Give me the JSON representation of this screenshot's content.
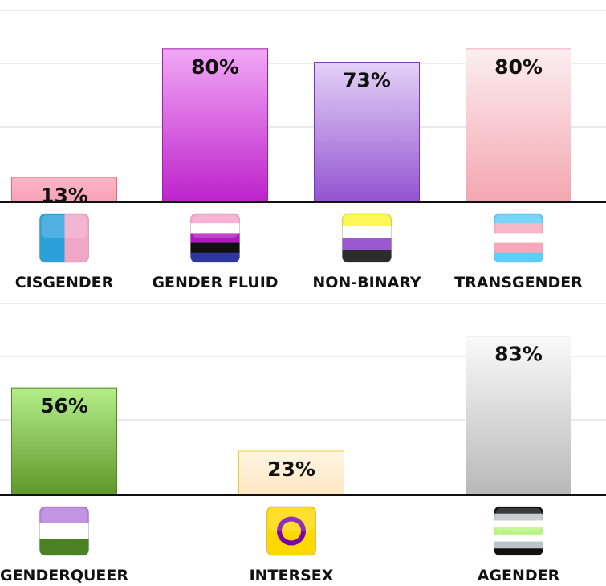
{
  "chart_data": [
    {
      "type": "bar",
      "categories": [
        "CISGENDER",
        "GENDER FLUID",
        "NON-BINARY",
        "TRANSGENDER"
      ],
      "values": [
        13,
        80,
        73,
        80
      ],
      "value_labels": [
        "13%",
        "80%",
        "73%",
        "80%"
      ],
      "title": "",
      "xlabel": "",
      "ylabel": "",
      "ylim": [
        0,
        100
      ],
      "grid": true,
      "icons": [
        "cisgender-flag-icon",
        "genderfluid-flag-icon",
        "nonbinary-flag-icon",
        "transgender-flag-icon"
      ],
      "colors": [
        {
          "top": "#fdb8c8",
          "bottom": "#f7a0b4",
          "border": "#e8667f"
        },
        {
          "top": "#f1a8f5",
          "bottom": "#bd22cc",
          "border": "#a21cae"
        },
        {
          "top": "#e4d2f7",
          "bottom": "#9353d0",
          "border": "#7b34bd"
        },
        {
          "top": "#fbeef1",
          "bottom": "#f4a6b0",
          "border": "#f2a9b6"
        }
      ]
    },
    {
      "type": "bar",
      "categories": [
        "GENDERQUEER",
        "INTERSEX",
        "AGENDER"
      ],
      "values": [
        56,
        23,
        83
      ],
      "value_labels": [
        "56%",
        "23%",
        "83%"
      ],
      "title": "",
      "xlabel": "",
      "ylabel": "",
      "ylim": [
        0,
        100
      ],
      "grid": true,
      "icons": [
        "genderqueer-flag-icon",
        "intersex-flag-icon",
        "agender-flag-icon"
      ],
      "colors": [
        {
          "top": "#b4ee8a",
          "bottom": "#5e9829",
          "border": "#4d8a24"
        },
        {
          "top": "#fff6e4",
          "bottom": "#fde6c2",
          "border": "#e8cc34"
        },
        {
          "top": "#fafafa",
          "bottom": "#b8b8b8",
          "border": "#aaaaaa"
        }
      ]
    }
  ]
}
